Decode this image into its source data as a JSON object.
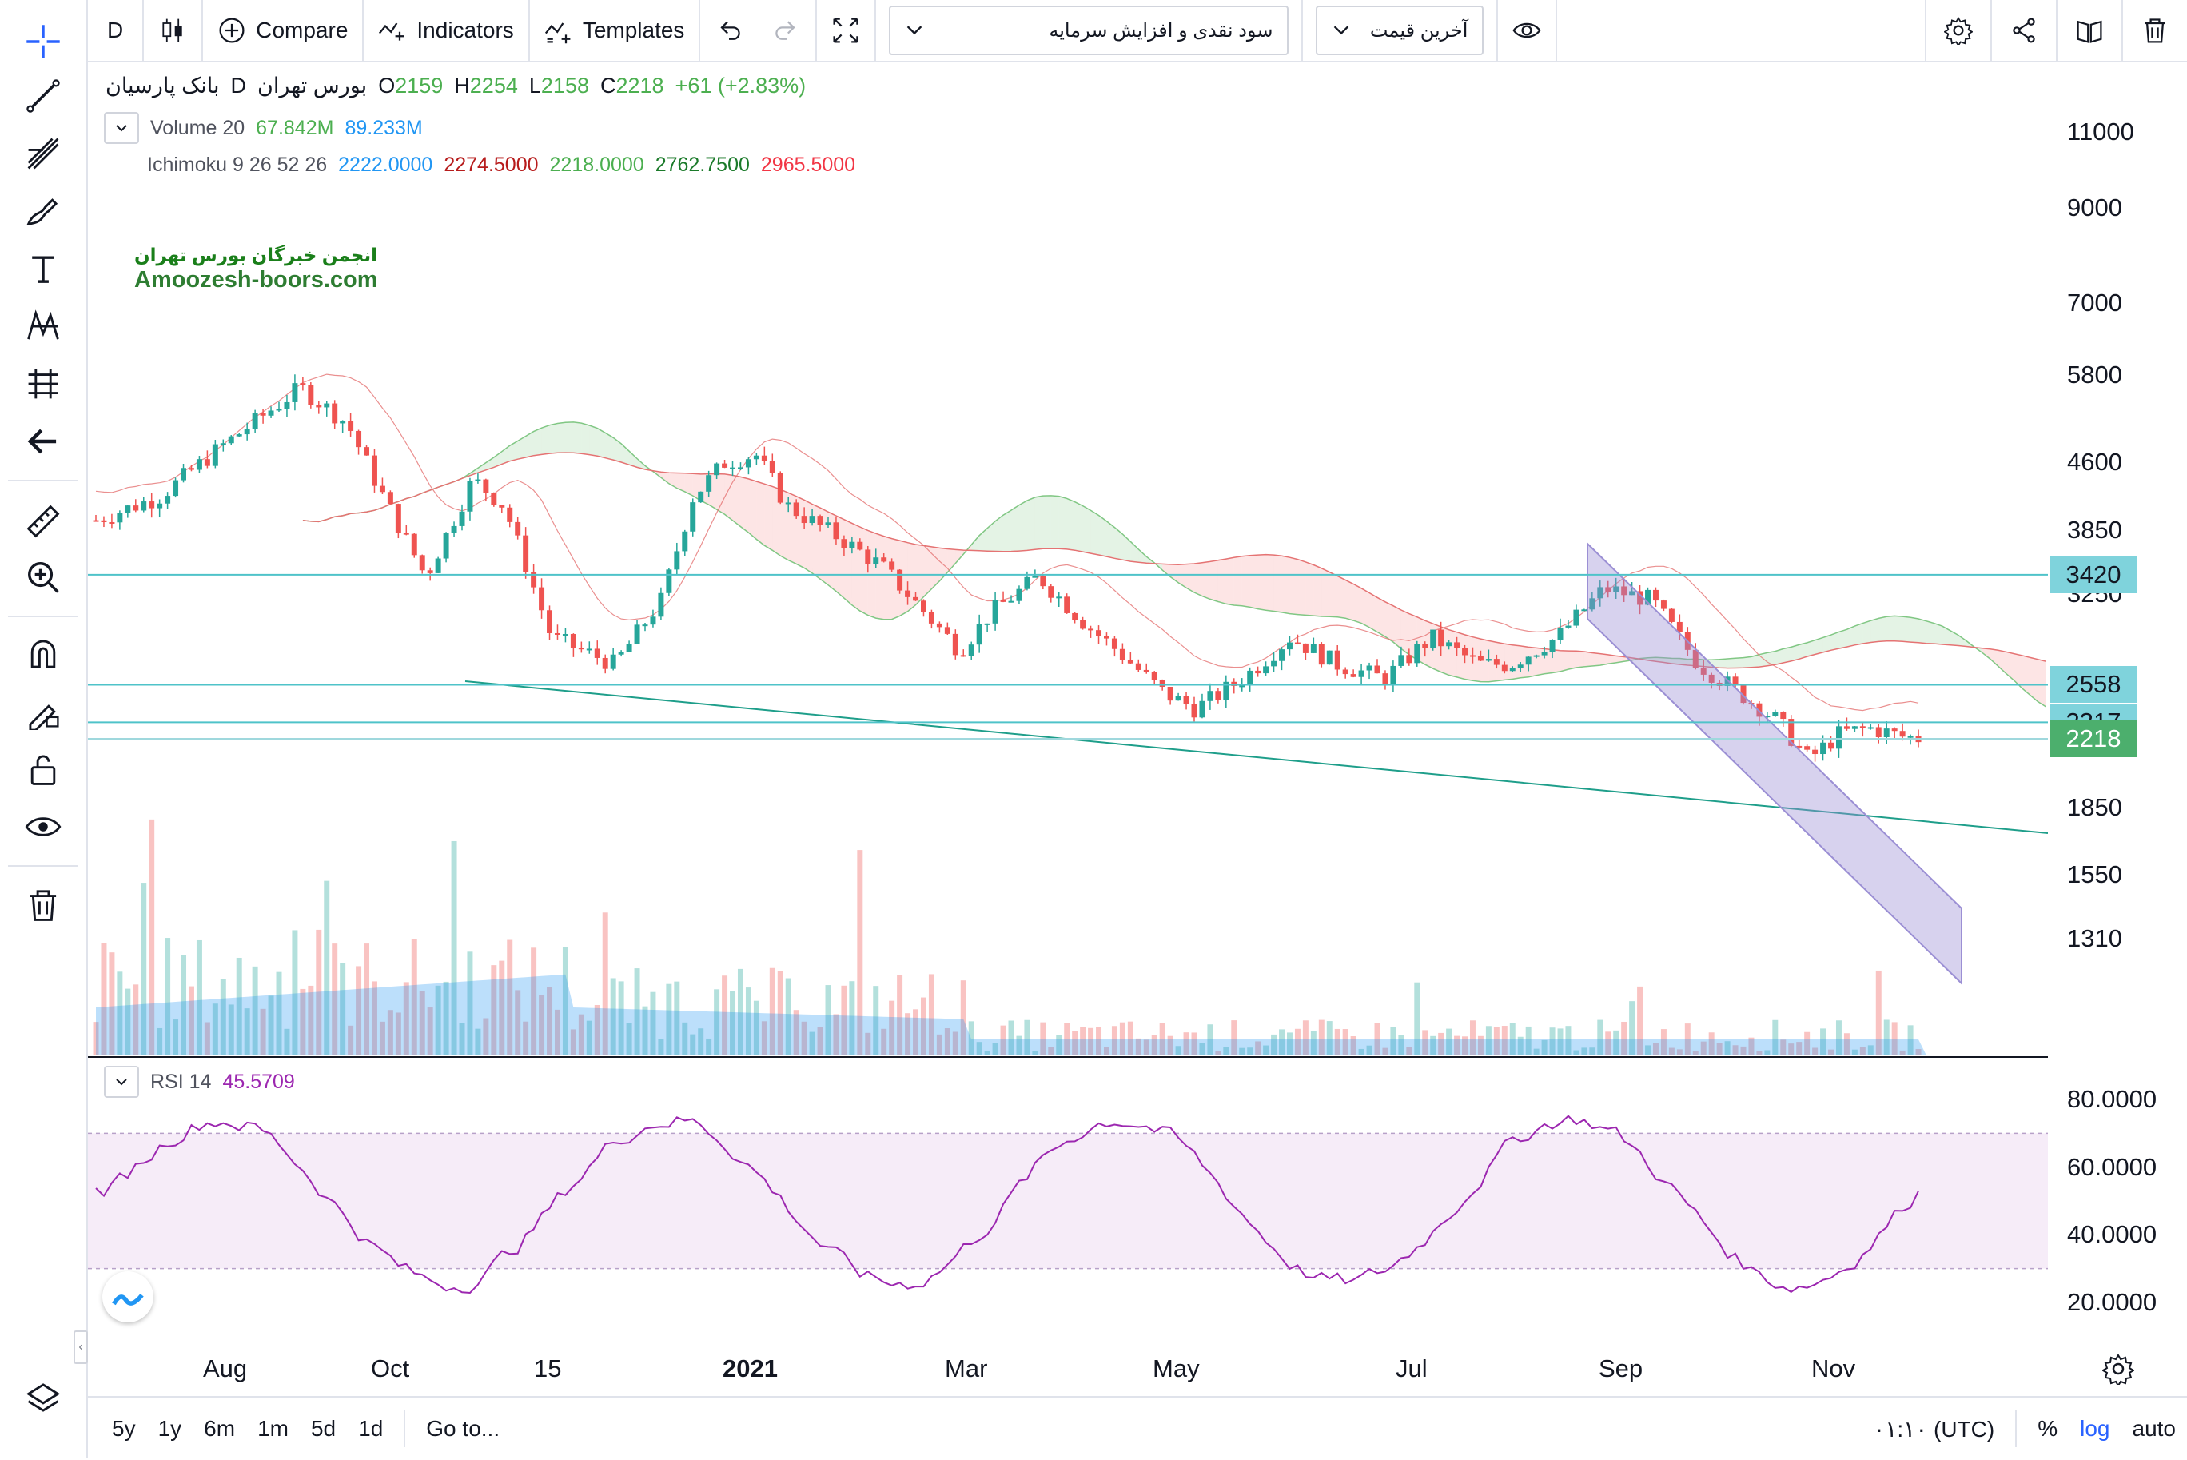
{
  "toolbar": {
    "interval": "D",
    "compare": "Compare",
    "indicators": "Indicators",
    "templates": "Templates",
    "dropdown1": "سود نقدی و افزایش سرمایه",
    "dropdown2": "آخرین قیمت"
  },
  "legend": {
    "symbol": "بانک پارسیان",
    "interval": "D",
    "exchange": "بورس تهران",
    "o_label": "O",
    "o": "2159",
    "h_label": "H",
    "h": "2254",
    "l_label": "L",
    "l": "2158",
    "c_label": "C",
    "c": "2218",
    "change": "+61 (+2.83%)",
    "volume_label": "Volume 20",
    "volume_1": "67.842M",
    "volume_2": "89.233M",
    "ichimoku_label": "Ichimoku 9 26 52 26",
    "ich_1": "2222.0000",
    "ich_2": "2274.5000",
    "ich_3": "2218.0000",
    "ich_4": "2762.7500",
    "ich_5": "2965.5000",
    "rsi_label": "RSI 14",
    "rsi_value": "45.5709"
  },
  "watermark": {
    "line1": "انجمن خبرگان بورس تهران",
    "line2": "Amoozesh-boors.com"
  },
  "price_axis": [
    "11000",
    "9000",
    "7000",
    "5800",
    "4600",
    "3850",
    "3250",
    "1850",
    "1550",
    "1310"
  ],
  "price_badges": [
    "3420",
    "2558",
    "2317",
    "2218"
  ],
  "rsi_axis": [
    "80.0000",
    "60.0000",
    "40.0000",
    "20.0000"
  ],
  "time_axis": [
    "Aug",
    "Oct",
    "15",
    "2021",
    "Mar",
    "May",
    "Jul",
    "Sep",
    "Nov"
  ],
  "bottombar": {
    "ranges": [
      "5y",
      "1y",
      "6m",
      "1m",
      "5d",
      "1d"
    ],
    "goto": "Go to...",
    "time": "۰۱:۱۰ (UTC)",
    "percent": "%",
    "log": "log",
    "auto": "auto"
  },
  "colors": {
    "up": "#26a69a",
    "down": "#ef5350",
    "legend_green": "#4caf50",
    "legend_blue": "#2196f3",
    "legend_red": "#f23645",
    "legend_darkgreen": "#388e3c",
    "rsi_line": "#9c27b0",
    "hline": "#4fc3c9",
    "badge_teal": "#7fd3dc",
    "badge_green": "#4caf6d",
    "channel": "#9b8fd4"
  }
}
